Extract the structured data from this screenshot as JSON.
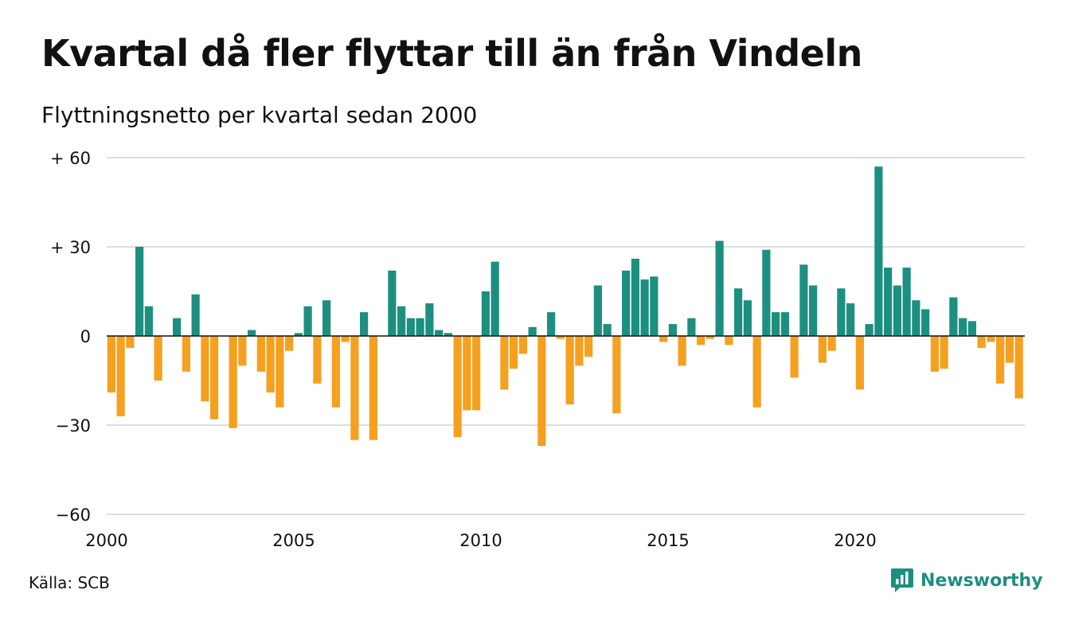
{
  "title": "Kvartal då fler flyttar till än från Vindeln",
  "subtitle": "Flyttningsnetto per kvartal sedan 2000",
  "source": "Källa: SCB",
  "brand": {
    "name": "Newsworthy",
    "icon": "newsworthy-logo-icon"
  },
  "colors": {
    "positive": "#1c8f80",
    "negative": "#f5a01f",
    "grid": "#dddddd",
    "zero": "#111111"
  },
  "chart_data": {
    "type": "bar",
    "title": "Kvartal då fler flyttar till än från Vindeln",
    "subtitle": "Flyttningsnetto per kvartal sedan 2000",
    "xlabel": "",
    "ylabel": "",
    "ylim": [
      -60,
      60
    ],
    "yticks": [
      {
        "value": 60,
        "label": "+ 60"
      },
      {
        "value": 30,
        "label": "+ 30"
      },
      {
        "value": 0,
        "label": "0"
      },
      {
        "value": -30,
        "label": "−30"
      },
      {
        "value": -60,
        "label": "−60"
      }
    ],
    "xticks": [
      {
        "year": 2000,
        "label": "2000"
      },
      {
        "year": 2005,
        "label": "2005"
      },
      {
        "year": 2010,
        "label": "2010"
      },
      {
        "year": 2015,
        "label": "2015"
      },
      {
        "year": 2020,
        "label": "2020"
      }
    ],
    "start": "2000 Q1",
    "grid": true,
    "legend": "none",
    "values": [
      -19,
      -27,
      -4,
      30,
      10,
      -15,
      0,
      6,
      -12,
      14,
      -22,
      -28,
      0,
      -31,
      -10,
      2,
      -12,
      -19,
      -24,
      -5,
      1,
      10,
      -16,
      12,
      -24,
      -2,
      -35,
      8,
      -35,
      0,
      22,
      10,
      6,
      6,
      11,
      2,
      1,
      -34,
      -25,
      -25,
      15,
      25,
      -18,
      -11,
      -6,
      3,
      -37,
      8,
      -1,
      -23,
      -10,
      -7,
      17,
      4,
      -26,
      22,
      26,
      19,
      20,
      -2,
      4,
      -10,
      6,
      -3,
      -1,
      32,
      -3,
      16,
      12,
      -24,
      29,
      8,
      8,
      -14,
      24,
      17,
      -9,
      -5,
      16,
      11,
      -18,
      4,
      57,
      23,
      17,
      23,
      12,
      9,
      -12,
      -11,
      13,
      6,
      5,
      -4,
      -2,
      -16,
      -9,
      -21
    ]
  }
}
